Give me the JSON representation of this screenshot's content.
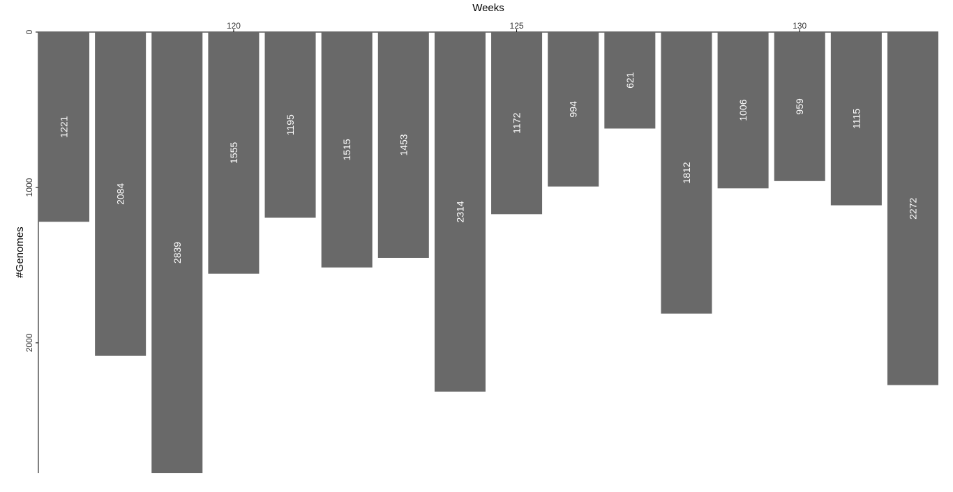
{
  "chart_data": {
    "type": "bar",
    "orientation": "downward",
    "xlabel": "Weeks",
    "ylabel": "#Genomes",
    "x": [
      117,
      118,
      119,
      120,
      121,
      122,
      123,
      124,
      125,
      126,
      127,
      128,
      129,
      130,
      131,
      132
    ],
    "values": [
      1221,
      2084,
      2839,
      1555,
      1195,
      1515,
      1453,
      2314,
      1172,
      994,
      621,
      1812,
      1006,
      959,
      1115,
      2272
    ],
    "xticks": [
      120,
      125,
      130
    ],
    "yticks": [
      0,
      1000,
      2000
    ],
    "xlim": [
      116.55,
      132.45
    ],
    "ylim": [
      0,
      2839
    ],
    "bar_color": "#696969",
    "label_color": "#ffffff",
    "grid": false,
    "legend": "none"
  }
}
